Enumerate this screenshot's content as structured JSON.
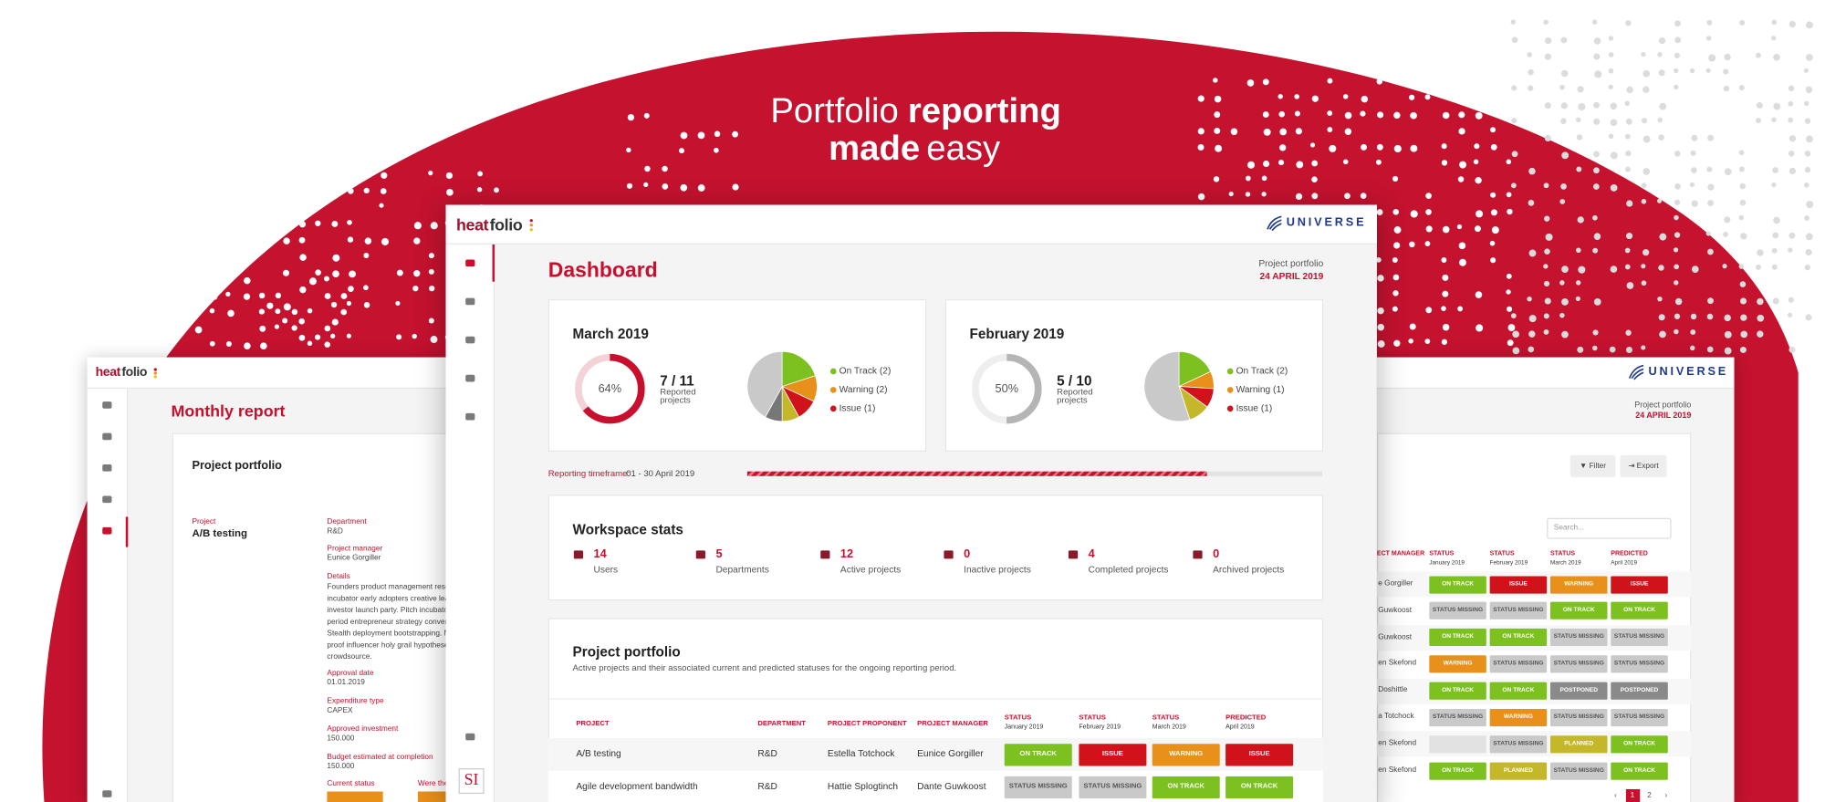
{
  "hero": {
    "line1": [
      "Portfolio",
      "reporting"
    ],
    "line2": [
      "made",
      "easy"
    ]
  },
  "status_colors": {
    "ON TRACK": "#7cc11f",
    "ISSUE": "#d0121b",
    "WARNING": "#e8901a",
    "STATUS MISSING": "#c9c9c9",
    "POSTPONED": "#8a8a8a",
    "PLANNED": "#c4b72a"
  },
  "main_window": {
    "logo": [
      "heat",
      "folio"
    ],
    "brand": "UNIVERSE",
    "title": "Dashboard",
    "context": "Project portfolio",
    "date": "24 APRIL 2019",
    "cards": [
      {
        "title": "March 2019",
        "percent": 64,
        "percent_label": "64%",
        "ring_color": "#c8102e",
        "track_color": "#f3d3d8",
        "reported": "7 / 11",
        "reported_label": "Reported projects",
        "pie": [
          {
            "value": 20,
            "color": "#7cc11f"
          },
          {
            "value": 12,
            "color": "#e8901a"
          },
          {
            "value": 10,
            "color": "#d0121b"
          },
          {
            "value": 8,
            "color": "#c4b72a"
          },
          {
            "value": 8,
            "color": "#777777"
          },
          {
            "value": 42,
            "color": "#c9c9c9"
          }
        ],
        "legend": [
          {
            "label": "On Track (2)",
            "color": "#7cc11f"
          },
          {
            "label": "Warning (2)",
            "color": "#e8901a"
          },
          {
            "label": "Issue (1)",
            "color": "#d0121b"
          }
        ]
      },
      {
        "title": "February 2019",
        "percent": 50,
        "percent_label": "50%",
        "ring_color": "#b5b5b5",
        "track_color": "#eeeeee",
        "reported": "5 / 10",
        "reported_label": "Reported projects",
        "pie": [
          {
            "value": 18,
            "color": "#7cc11f"
          },
          {
            "value": 8,
            "color": "#e8901a"
          },
          {
            "value": 9,
            "color": "#d0121b"
          },
          {
            "value": 10,
            "color": "#c4b72a"
          },
          {
            "value": 55,
            "color": "#c9c9c9"
          }
        ],
        "legend": [
          {
            "label": "On Track (2)",
            "color": "#7cc11f"
          },
          {
            "label": "Warning (1)",
            "color": "#e8901a"
          },
          {
            "label": "Issue (1)",
            "color": "#d0121b"
          }
        ]
      }
    ],
    "timeframe": {
      "label": "Reporting timeframe:",
      "value": "01 - 30 April 2019",
      "progress": 80
    },
    "stats": {
      "title": "Workspace stats",
      "items": [
        {
          "value": 14,
          "label": "Users"
        },
        {
          "value": 5,
          "label": "Departments"
        },
        {
          "value": 12,
          "label": "Active projects"
        },
        {
          "value": 0,
          "label": "Inactive projects"
        },
        {
          "value": 4,
          "label": "Completed projects"
        },
        {
          "value": 0,
          "label": "Archived projects"
        }
      ]
    },
    "portfolio": {
      "title": "Project portfolio",
      "subtitle": "Active projects and their associated current and predicted statuses for the ongoing reporting period.",
      "columns": [
        {
          "title": "PROJECT"
        },
        {
          "title": "DEPARTMENT"
        },
        {
          "title": "PROJECT PROPONENT"
        },
        {
          "title": "PROJECT MANAGER"
        },
        {
          "title": "STATUS",
          "sub": "January 2019"
        },
        {
          "title": "STATUS",
          "sub": "February 2019"
        },
        {
          "title": "STATUS",
          "sub": "March 2019"
        },
        {
          "title": "PREDICTED",
          "sub": "April 2019"
        }
      ],
      "rows": [
        {
          "project": "A/B testing",
          "department": "R&D",
          "proponent": "Estella Totchock",
          "manager": "Eunice Gorgiller",
          "statuses": [
            "ON TRACK",
            "ISSUE",
            "WARNING",
            "ISSUE"
          ]
        },
        {
          "project": "Agile development bandwidth",
          "department": "R&D",
          "proponent": "Hattie Splogtinch",
          "manager": "Dante Guwkoost",
          "statuses": [
            "STATUS MISSING",
            "STATUS MISSING",
            "ON TRACK",
            "ON TRACK"
          ]
        }
      ]
    },
    "avatar": "SI"
  },
  "left_window": {
    "logo": [
      "heat",
      "folio"
    ],
    "title": "Monthly report",
    "card_title": "Project portfolio",
    "project": {
      "label": "Project",
      "value": "A/B testing"
    },
    "fields": [
      {
        "label": "Department",
        "value": "R&D"
      },
      {
        "label": "Project manager",
        "value": "Eunice Gorgiller"
      },
      {
        "label": "Details",
        "lines": [
          "Founders product management rese",
          "incubator early adopters creative lea",
          "investor launch party. Pitch incubato",
          "period entrepreneur strategy conver",
          "Stealth deployment bootstrapping. M",
          "proof influencer holy grail hypothese",
          "crowdsource."
        ]
      },
      {
        "label": "Approval date",
        "value": "01.01.2019"
      },
      {
        "label": "Expenditure type",
        "value": "CAPEX"
      },
      {
        "label": "Approved investment",
        "value": "150.000"
      },
      {
        "label": "Budget estimated at completion",
        "value": "150.000"
      }
    ],
    "status_label": "Current status",
    "extra_label": "Were ther"
  },
  "right_window": {
    "brand": "UNIVERSE",
    "context": "Project portfolio",
    "date": "24 APRIL 2019",
    "filter": "Filter",
    "export": "Export",
    "search": "Search...",
    "columns": [
      {
        "title": "ECT MANAGER"
      },
      {
        "title": "STATUS",
        "sub": "January 2019"
      },
      {
        "title": "STATUS",
        "sub": "February 2019"
      },
      {
        "title": "STATUS",
        "sub": "March 2019"
      },
      {
        "title": "PREDICTED",
        "sub": "April 2019"
      }
    ],
    "rows": [
      {
        "manager": "e Gorgiller",
        "statuses": [
          "ON TRACK",
          "ISSUE",
          "WARNING",
          "ISSUE"
        ]
      },
      {
        "manager": "Guwkoost",
        "statuses": [
          "STATUS MISSING",
          "STATUS MISSING",
          "ON TRACK",
          "ON TRACK"
        ]
      },
      {
        "manager": "Guwkoost",
        "statuses": [
          "ON TRACK",
          "ON TRACK",
          "STATUS MISSING",
          "STATUS MISSING"
        ]
      },
      {
        "manager": "en Skefond",
        "statuses": [
          "WARNING",
          "STATUS MISSING",
          "STATUS MISSING",
          "STATUS MISSING"
        ]
      },
      {
        "manager": "Doshittle",
        "statuses": [
          "ON TRACK",
          "ON TRACK",
          "POSTPONED",
          "POSTPONED"
        ]
      },
      {
        "manager": "a Totchock",
        "statuses": [
          "STATUS MISSING",
          "WARNING",
          "STATUS MISSING",
          "STATUS MISSING"
        ]
      },
      {
        "manager": "en Skefond",
        "statuses": [
          null,
          "STATUS MISSING",
          "PLANNED",
          "ON TRACK"
        ]
      },
      {
        "manager": "en Skefond",
        "statuses": [
          "ON TRACK",
          "PLANNED",
          "STATUS MISSING",
          "ON TRACK"
        ]
      }
    ],
    "pages": [
      "‹",
      "1",
      "2",
      "›"
    ]
  }
}
